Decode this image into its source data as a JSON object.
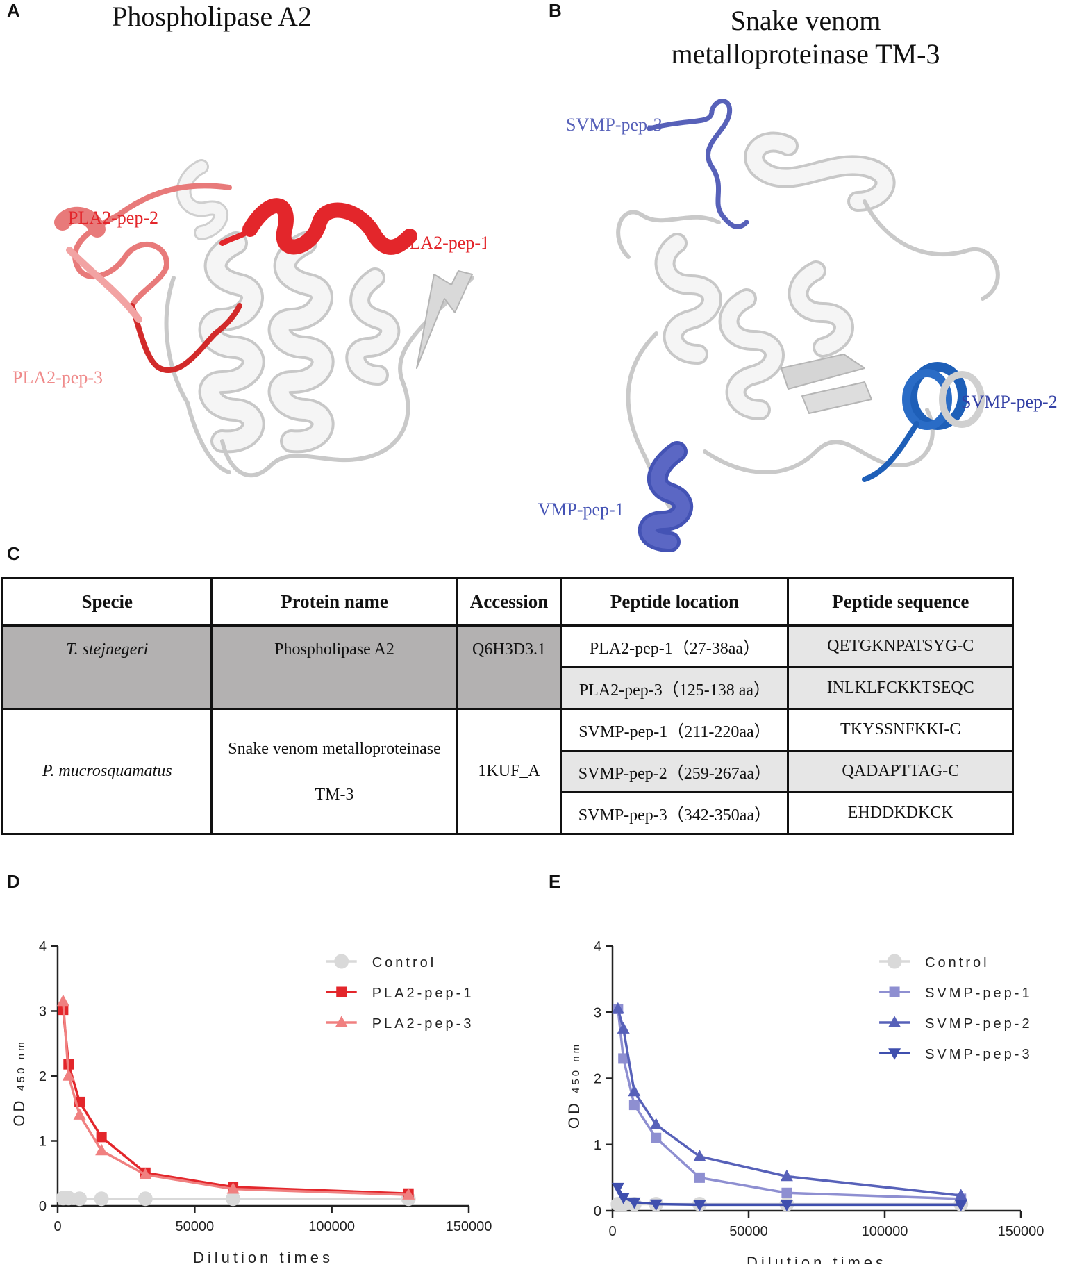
{
  "panels": {
    "a": {
      "letter": "A",
      "title": "Phospholipase A2",
      "labels": {
        "pep1": "PLA2-pep-1",
        "pep2": "PLA2-pep-2",
        "pep3": "PLA2-pep-3"
      }
    },
    "b": {
      "letter": "B",
      "title_line1": "Snake venom",
      "title_line2": "metalloproteinase TM-3",
      "labels": {
        "pep1": "SVMP-pep-1",
        "pep2": "SVMP-pep-2",
        "pep3": "SVMP-pep-3"
      }
    },
    "c": {
      "letter": "C"
    },
    "d": {
      "letter": "D"
    },
    "e": {
      "letter": "E"
    }
  },
  "table": {
    "headers": [
      "Specie",
      "Protein name",
      "Accession",
      "Peptide location",
      "Peptide sequence"
    ],
    "group1": {
      "species": "T. stejnegeri",
      "protein": "Phospholipase A2",
      "accession": "Q6H3D3.1",
      "rows": [
        {
          "location": "PLA2-pep-1（27-38aa）",
          "sequence": "QETGKNPATSYG-C"
        },
        {
          "location": "PLA2-pep-3（125-138 aa）",
          "sequence": "INLKLFCKKTSEQC"
        }
      ]
    },
    "group2": {
      "species": "P. mucrosquamatus",
      "protein_line1": "Snake venom metalloproteinase",
      "protein_line2": "TM-3",
      "accession": "1KUF_A",
      "rows": [
        {
          "location": "SVMP-pep-1（211-220aa）",
          "sequence": "TKYSSNFKKI-C"
        },
        {
          "location": "SVMP-pep-2（259-267aa）",
          "sequence": "QADAPTTAG-C"
        },
        {
          "location": "SVMP-pep-3（342-350aa）",
          "sequence": "EHDDKDKCK"
        }
      ]
    }
  },
  "chart_data": [
    {
      "type": "line",
      "panel": "D",
      "xlabel": "Dilution times",
      "ylabel": "OD",
      "ylabel_sub": "450 nm",
      "xlim": [
        0,
        150000
      ],
      "ylim": [
        0,
        4
      ],
      "xticks": [
        0,
        50000,
        100000,
        150000
      ],
      "yticks": [
        0,
        1,
        2,
        3,
        4
      ],
      "legend_position": "top-right",
      "series": [
        {
          "name": "Control",
          "color": "#d9d9d9",
          "marker": "circle",
          "x": [
            2000,
            4000,
            8000,
            16000,
            32000,
            64000,
            128000
          ],
          "y": [
            0.12,
            0.12,
            0.11,
            0.11,
            0.11,
            0.11,
            0.11
          ]
        },
        {
          "name": "PLA2-pep-1",
          "color": "#e3262b",
          "marker": "square",
          "x": [
            2000,
            4000,
            8000,
            16000,
            32000,
            64000,
            128000
          ],
          "y": [
            3.02,
            2.18,
            1.6,
            1.06,
            0.51,
            0.29,
            0.19
          ]
        },
        {
          "name": "PLA2-pep-3",
          "color": "#f08080",
          "marker": "triangle",
          "x": [
            2000,
            4000,
            8000,
            16000,
            32000,
            64000,
            128000
          ],
          "y": [
            3.15,
            2.0,
            1.4,
            0.85,
            0.48,
            0.26,
            0.17
          ]
        }
      ]
    },
    {
      "type": "line",
      "panel": "E",
      "xlabel": "Dilution times",
      "ylabel": "OD",
      "ylabel_sub": "450 nm",
      "xlim": [
        0,
        150000
      ],
      "ylim": [
        0,
        4
      ],
      "xticks": [
        0,
        50000,
        100000,
        150000
      ],
      "yticks": [
        0,
        1,
        2,
        3,
        4
      ],
      "legend_position": "top-right",
      "series": [
        {
          "name": "Control",
          "color": "#d9d9d9",
          "marker": "circle",
          "x": [
            2000,
            4000,
            8000,
            16000,
            32000,
            64000,
            128000
          ],
          "y": [
            0.1,
            0.1,
            0.1,
            0.1,
            0.1,
            0.1,
            0.1
          ]
        },
        {
          "name": "SVMP-pep-1",
          "color": "#8e8fd1",
          "marker": "square",
          "x": [
            2000,
            4000,
            8000,
            16000,
            32000,
            64000,
            128000
          ],
          "y": [
            3.05,
            2.3,
            1.6,
            1.1,
            0.5,
            0.27,
            0.18
          ]
        },
        {
          "name": "SVMP-pep-2",
          "color": "#5761b9",
          "marker": "triangle",
          "x": [
            2000,
            4000,
            8000,
            16000,
            32000,
            64000,
            128000
          ],
          "y": [
            3.05,
            2.75,
            1.8,
            1.3,
            0.82,
            0.52,
            0.23
          ]
        },
        {
          "name": "SVMP-pep-3",
          "color": "#3f4fae",
          "marker": "triangle-down",
          "x": [
            2000,
            4000,
            8000,
            16000,
            32000,
            64000,
            128000
          ],
          "y": [
            0.35,
            0.2,
            0.13,
            0.1,
            0.09,
            0.09,
            0.09
          ]
        }
      ]
    }
  ]
}
